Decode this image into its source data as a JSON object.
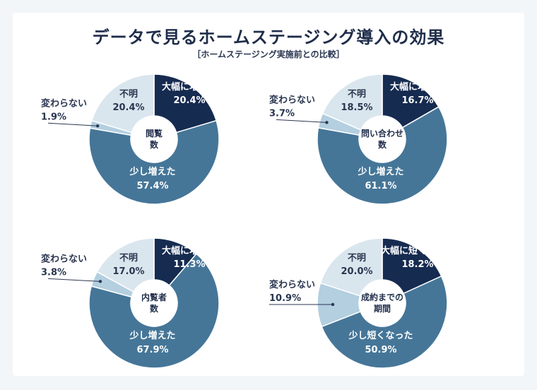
{
  "title": "データで見るホームステージング導入の効果",
  "subtitle": "［ホームステージング実施前との比較］",
  "colors": {
    "big": "#162b50",
    "small": "#457698",
    "nochange": "#b3cfe0",
    "unknown": "#dae6ee"
  },
  "chart_data": [
    {
      "type": "pie",
      "center_label": [
        "閲覧",
        "数"
      ],
      "slices": [
        {
          "label": "大幅に増えた",
          "value": 20.4,
          "value_text": "20.4%"
        },
        {
          "label": "少し増えた",
          "value": 57.4,
          "value_text": "57.4%"
        },
        {
          "label": "変わらない",
          "value": 1.9,
          "value_text": "1.9%"
        },
        {
          "label": "不明",
          "value": 20.4,
          "value_text": "20.4%"
        }
      ]
    },
    {
      "type": "pie",
      "center_label": [
        "問い合わせ",
        "数"
      ],
      "slices": [
        {
          "label": "大幅に増えた",
          "value": 16.7,
          "value_text": "16.7%"
        },
        {
          "label": "少し増えた",
          "value": 61.1,
          "value_text": "61.1%"
        },
        {
          "label": "変わらない",
          "value": 3.7,
          "value_text": "3.7%"
        },
        {
          "label": "不明",
          "value": 18.5,
          "value_text": "18.5%"
        }
      ]
    },
    {
      "type": "pie",
      "center_label": [
        "内覧者",
        "数"
      ],
      "slices": [
        {
          "label": "大幅に増えた",
          "value": 11.3,
          "value_text": "11.3%"
        },
        {
          "label": "少し増えた",
          "value": 67.9,
          "value_text": "67.9%"
        },
        {
          "label": "変わらない",
          "value": 3.8,
          "value_text": "3.8%"
        },
        {
          "label": "不明",
          "value": 17.0,
          "value_text": "17.0%"
        }
      ]
    },
    {
      "type": "pie",
      "center_label": [
        "成約までの",
        "期間"
      ],
      "slices": [
        {
          "label": "大幅に短くなった",
          "value": 18.2,
          "value_text": "18.2%"
        },
        {
          "label": "少し短くなった",
          "value": 50.9,
          "value_text": "50.9%"
        },
        {
          "label": "変わらない",
          "value": 10.9,
          "value_text": "10.9%"
        },
        {
          "label": "不明",
          "value": 20.0,
          "value_text": "20.0%"
        }
      ]
    }
  ]
}
